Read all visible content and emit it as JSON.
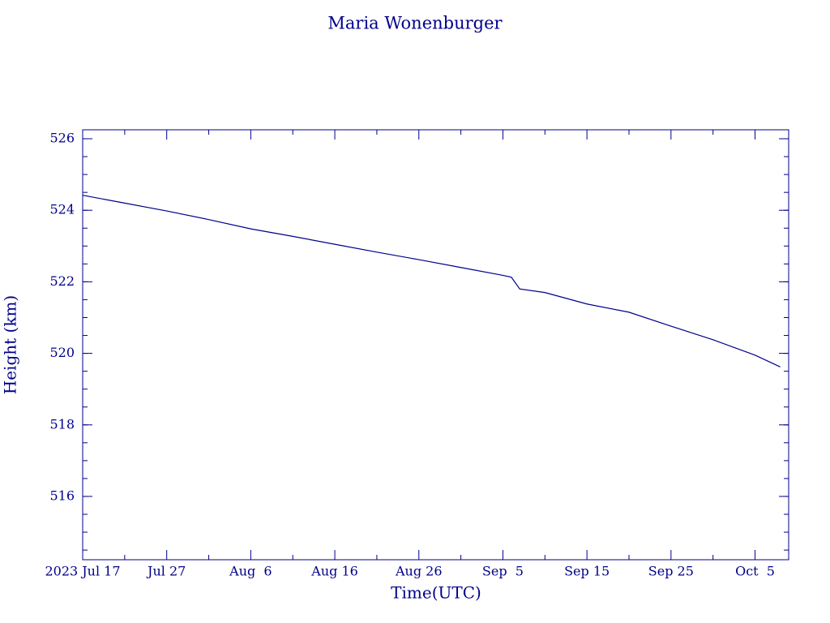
{
  "chart_data": {
    "type": "line",
    "title": "Maria Wonenburger",
    "x_label": "Time(UTC)",
    "y_label": "Height (km)",
    "x": [
      "2023-07-17",
      "2023-07-22",
      "2023-07-27",
      "2023-08-01",
      "2023-08-06",
      "2023-08-11",
      "2023-08-16",
      "2023-08-21",
      "2023-08-26",
      "2023-08-31",
      "2023-09-05",
      "2023-09-06",
      "2023-09-07",
      "2023-09-10",
      "2023-09-15",
      "2023-09-20",
      "2023-09-25",
      "2023-09-30",
      "2023-10-05",
      "2023-10-08"
    ],
    "series": [
      {
        "name": "Height",
        "color": "#00008b",
        "values": [
          524.42,
          524.2,
          523.98,
          523.74,
          523.48,
          523.27,
          523.05,
          522.83,
          522.62,
          522.4,
          522.18,
          522.13,
          521.8,
          521.7,
          521.38,
          521.15,
          520.76,
          520.38,
          519.95,
          519.62
        ]
      }
    ],
    "xlim": [
      "2023-07-17",
      "2023-10-09"
    ],
    "xticks": [
      {
        "value": "2023-07-17",
        "label": "2023 Jul 17"
      },
      {
        "value": "2023-07-27",
        "label": "Jul 27"
      },
      {
        "value": "2023-08-06",
        "label": "Aug  6"
      },
      {
        "value": "2023-08-16",
        "label": "Aug 16"
      },
      {
        "value": "2023-08-26",
        "label": "Aug 26"
      },
      {
        "value": "2023-09-05",
        "label": "Sep  5"
      },
      {
        "value": "2023-09-15",
        "label": "Sep 15"
      },
      {
        "value": "2023-09-25",
        "label": "Sep 25"
      },
      {
        "value": "2023-10-05",
        "label": "Oct  5"
      }
    ],
    "ylim": [
      514.23,
      526.25
    ],
    "yticks": [
      516,
      518,
      520,
      522,
      524,
      526
    ],
    "grid": false
  }
}
